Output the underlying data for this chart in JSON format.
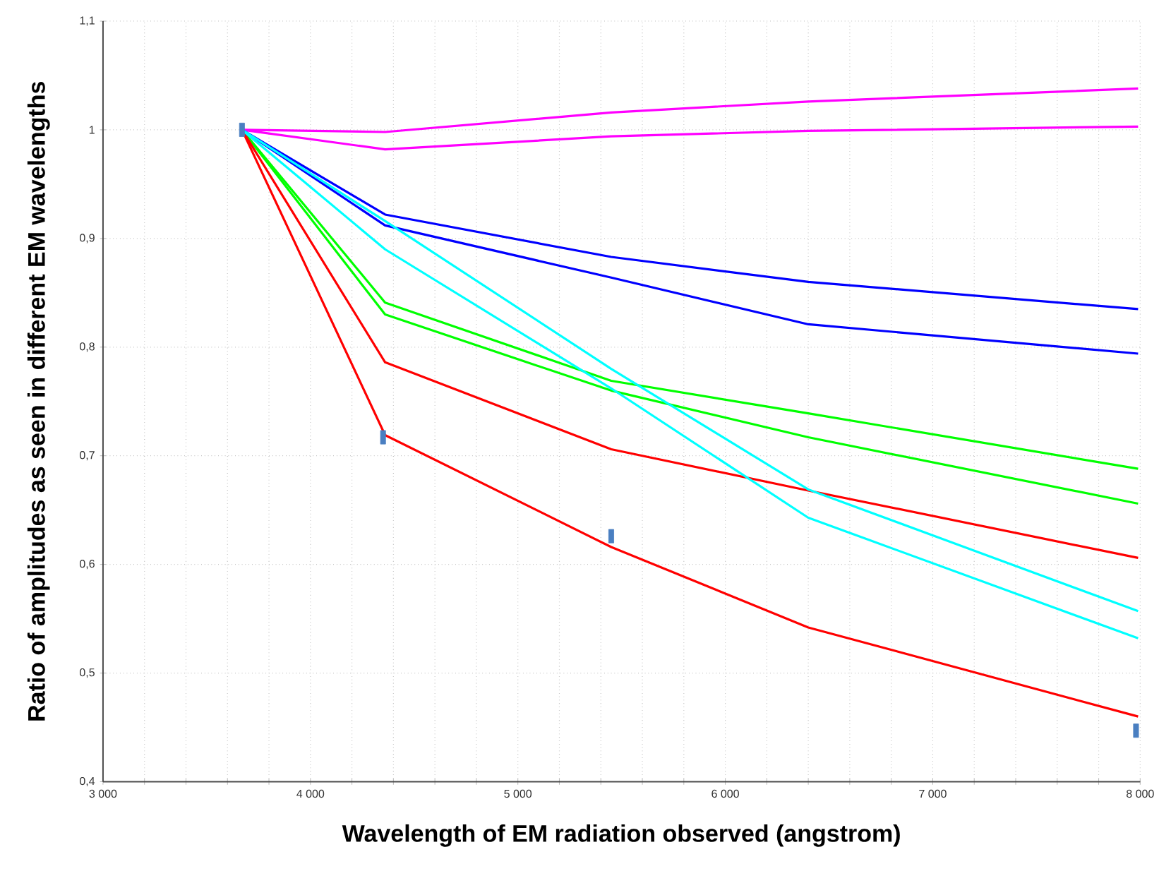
{
  "chart_data": {
    "type": "line",
    "xlabel": "Wavelength of EM radiation observed (angstrom)",
    "ylabel": "Ratio of amplitudes as seen in different EM wavelengths",
    "x": [
      3670,
      4360,
      5450,
      6400,
      7990
    ],
    "series": [
      {
        "color": "#ff00ff",
        "values": [
          1.0,
          0.998,
          1.016,
          1.026,
          1.038
        ]
      },
      {
        "color": "#ff00ff",
        "values": [
          1.0,
          0.982,
          0.994,
          0.999,
          1.003
        ]
      },
      {
        "color": "#0000ff",
        "values": [
          1.0,
          0.922,
          0.883,
          0.86,
          0.835
        ]
      },
      {
        "color": "#0000ff",
        "values": [
          1.0,
          0.912,
          0.864,
          0.821,
          0.794
        ]
      },
      {
        "color": "#00ff00",
        "values": [
          1.0,
          0.841,
          0.769,
          0.739,
          0.688
        ]
      },
      {
        "color": "#00ff00",
        "values": [
          1.0,
          0.83,
          0.76,
          0.717,
          0.656
        ]
      },
      {
        "color": "#ff0000",
        "values": [
          1.0,
          0.786,
          0.706,
          0.668,
          0.606
        ]
      },
      {
        "color": "#ff0000",
        "values": [
          1.0,
          0.719,
          0.616,
          0.542,
          0.46
        ]
      },
      {
        "color": "#00ffff",
        "values": [
          1.0,
          0.916,
          0.78,
          0.669,
          0.557
        ]
      },
      {
        "color": "#00ffff",
        "values": [
          1.0,
          0.89,
          0.762,
          0.643,
          0.532
        ]
      },
      {
        "type": "scatter",
        "marker": "square",
        "color": "#4a7fc1",
        "x": [
          3670,
          4350,
          5450,
          7980
        ],
        "values": [
          1.0,
          0.717,
          0.626,
          0.447
        ]
      }
    ],
    "xlim": [
      3000,
      8000
    ],
    "xticks": [
      {
        "value": 3000,
        "label": "3 000"
      },
      {
        "value": 3200,
        "label": null
      },
      {
        "value": 3400,
        "label": null
      },
      {
        "value": 3600,
        "label": null
      },
      {
        "value": 3800,
        "label": null
      },
      {
        "value": 4000,
        "label": "4 000"
      },
      {
        "value": 4200,
        "label": null
      },
      {
        "value": 4400,
        "label": null
      },
      {
        "value": 4600,
        "label": null
      },
      {
        "value": 4800,
        "label": null
      },
      {
        "value": 5000,
        "label": "5 000"
      },
      {
        "value": 5200,
        "label": null
      },
      {
        "value": 5400,
        "label": null
      },
      {
        "value": 5600,
        "label": null
      },
      {
        "value": 5800,
        "label": null
      },
      {
        "value": 6000,
        "label": "6 000"
      },
      {
        "value": 6200,
        "label": null
      },
      {
        "value": 6400,
        "label": null
      },
      {
        "value": 6600,
        "label": null
      },
      {
        "value": 6800,
        "label": null
      },
      {
        "value": 7000,
        "label": "7 000"
      },
      {
        "value": 7200,
        "label": null
      },
      {
        "value": 7400,
        "label": null
      },
      {
        "value": 7600,
        "label": null
      },
      {
        "value": 7800,
        "label": null
      },
      {
        "value": 8000,
        "label": "8 000"
      }
    ],
    "ylim": [
      0.4,
      1.1
    ],
    "yticks": [
      {
        "value": 0.4,
        "label": "0,4"
      },
      {
        "value": 0.5,
        "label": "0,5"
      },
      {
        "value": 0.6,
        "label": "0,6"
      },
      {
        "value": 0.7,
        "label": "0,7"
      },
      {
        "value": 0.8,
        "label": "0,8"
      },
      {
        "value": 0.9,
        "label": "0,9"
      },
      {
        "value": 1.0,
        "label": "1"
      },
      {
        "value": 1.1,
        "label": "1,1"
      }
    ],
    "grid": true,
    "line_style": "solid",
    "marker": "none"
  }
}
